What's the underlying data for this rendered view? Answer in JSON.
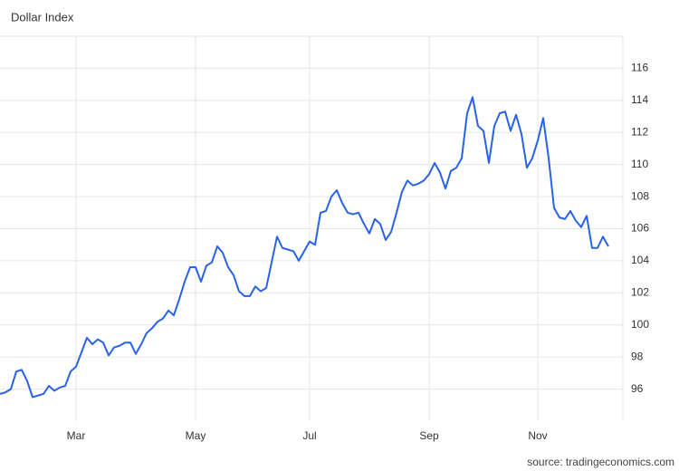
{
  "chart_data": {
    "type": "line",
    "title": "Dollar Index",
    "source": "source: tradingeconomics.com",
    "categories": [
      null,
      null,
      null,
      null,
      null,
      null,
      null,
      null,
      null,
      null,
      null,
      null,
      null,
      null,
      "Mar",
      null,
      null,
      null,
      null,
      null,
      null,
      null,
      null,
      null,
      null,
      null,
      null,
      null,
      null,
      null,
      null,
      null,
      null,
      null,
      null,
      null,
      "May",
      null,
      null,
      null,
      null,
      null,
      null,
      null,
      null,
      null,
      null,
      null,
      null,
      null,
      null,
      null,
      null,
      null,
      null,
      null,
      null,
      "Jul",
      null,
      null,
      null,
      null,
      null,
      null,
      null,
      null,
      null,
      null,
      null,
      null,
      null,
      null,
      null,
      null,
      null,
      null,
      null,
      null,
      null,
      "Sep",
      null,
      null,
      null,
      null,
      null,
      null,
      null,
      null,
      null,
      null,
      null,
      null,
      null,
      null,
      null,
      null,
      null,
      null,
      null,
      "Nov",
      null,
      null,
      null,
      null,
      null,
      null,
      null,
      null,
      null,
      null,
      null,
      null,
      null
    ],
    "values": [
      95.7,
      95.8,
      96.0,
      97.1,
      97.2,
      96.5,
      95.5,
      95.6,
      95.7,
      96.2,
      95.9,
      96.1,
      96.2,
      97.1,
      97.4,
      98.3,
      99.2,
      98.8,
      99.1,
      98.9,
      98.1,
      98.6,
      98.7,
      98.9,
      98.9,
      98.2,
      98.8,
      99.5,
      99.8,
      100.2,
      100.4,
      100.9,
      100.6,
      101.6,
      102.7,
      103.6,
      103.6,
      102.7,
      103.7,
      103.9,
      104.9,
      104.5,
      103.6,
      103.1,
      102.1,
      101.8,
      101.8,
      102.4,
      102.1,
      102.3,
      103.9,
      105.5,
      104.8,
      104.7,
      104.6,
      104.0,
      104.6,
      105.2,
      105.0,
      107.0,
      107.1,
      108.0,
      108.4,
      107.6,
      107.0,
      106.9,
      107.0,
      106.3,
      105.7,
      106.6,
      106.3,
      105.3,
      105.8,
      107.0,
      108.3,
      109.0,
      108.7,
      108.8,
      109.0,
      109.4,
      110.1,
      109.5,
      108.5,
      109.6,
      109.8,
      110.4,
      113.2,
      114.2,
      112.4,
      112.1,
      110.1,
      112.4,
      113.2,
      113.3,
      112.1,
      113.1,
      111.9,
      109.8,
      110.4,
      111.5,
      112.9,
      110.4,
      107.3,
      106.7,
      106.6,
      107.1,
      106.5,
      106.1,
      106.8,
      104.8,
      104.8,
      105.5,
      104.9
    ],
    "color": "#2962e8",
    "ylim": [
      94,
      118
    ],
    "yticks": [
      96,
      98,
      100,
      102,
      104,
      106,
      108,
      110,
      112,
      114,
      116
    ],
    "grid": true
  }
}
